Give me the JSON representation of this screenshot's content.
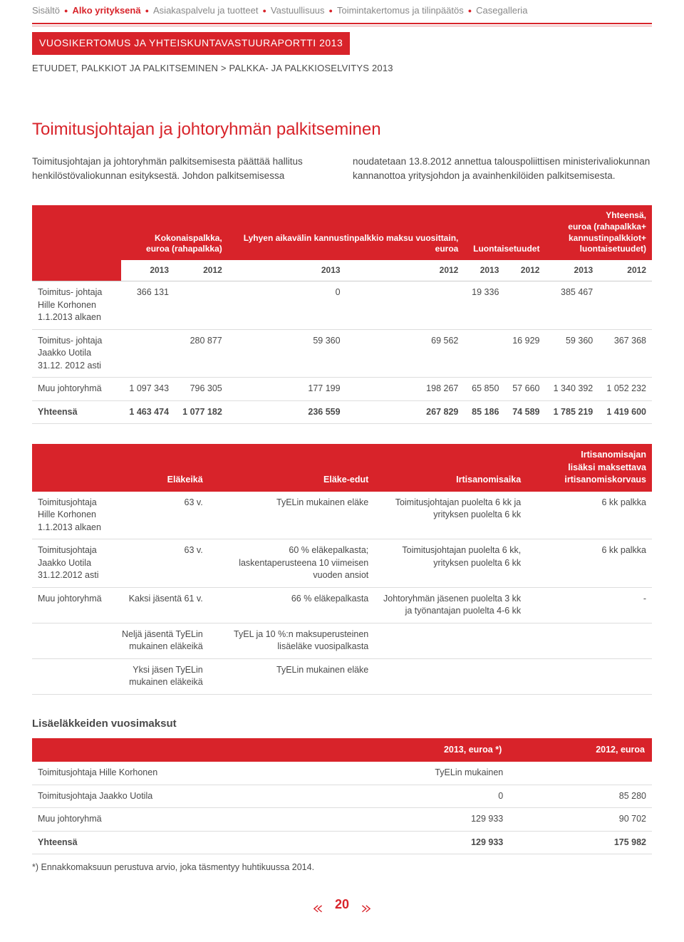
{
  "nav": {
    "items": [
      {
        "label": "Sisältö",
        "active": false
      },
      {
        "label": "Alko yrityksenä",
        "active": true
      },
      {
        "label": "Asiakaspalvelu ja tuotteet",
        "active": false
      },
      {
        "label": "Vastuullisuus",
        "active": false
      },
      {
        "label": "Toimintakertomus ja tilinpäätös",
        "active": false
      },
      {
        "label": "Casegalleria",
        "active": false
      }
    ]
  },
  "report_title": "VUOSIKERTOMUS JA YHTEISKUNTAVASTUURAPORTTI 2013",
  "breadcrumb": "ETUUDET, PALKKIOT JA PALKITSEMINEN > PALKKA- JA PALKKIOSELVITYS 2013",
  "heading": "Toimitusjohtajan ja johtoryhmän palkitseminen",
  "body_text": "Toimitusjohtajan ja johtoryhmän palkitsemisesta päättää hallitus henkilöstövaliokunnan esityksestä. Johdon palkitsemisessa noudatetaan 13.8.2012 annettua talouspoliittisen ministerivaliokunnan kannanottoa yritysjohdon ja avainhenkilöiden palkitsemisesta.",
  "t1": {
    "group_headers": [
      "",
      "Kokonaispalkka, euroa (rahapalkka)",
      "Lyhyen aikavälin kannustinpalkkio maksu vuosittain, euroa",
      "Luontaisetuudet",
      "Yhteensä, euroa (rahapalkka+ kannustinpalkkiot+ luontaisetuudet)"
    ],
    "years": [
      "2013",
      "2012",
      "2013",
      "2012",
      "2013",
      "2012",
      "2013",
      "2012"
    ],
    "rows": [
      {
        "label": "Toimitus- johtaja Hille Korhonen 1.1.2013 alkaen",
        "cells": [
          "366 131",
          "",
          "0",
          "",
          "19 336",
          "",
          "385 467",
          ""
        ]
      },
      {
        "label": "Toimitus- johtaja Jaakko Uotila 31.12. 2012 asti",
        "cells": [
          "",
          "280 877",
          "59 360",
          "69 562",
          "",
          "16 929",
          "59 360",
          "367 368"
        ]
      },
      {
        "label": "Muu johtoryhmä",
        "cells": [
          "1 097 343",
          "796 305",
          "177 199",
          "198 267",
          "65 850",
          "57 660",
          "1 340 392",
          "1 052 232"
        ]
      },
      {
        "label": "Yhteensä",
        "cells": [
          "1 463 474",
          "1 077 182",
          "236 559",
          "267 829",
          "85 186",
          "74 589",
          "1 785 219",
          "1 419 600"
        ],
        "total": true
      }
    ]
  },
  "t2": {
    "headers": [
      "",
      "Eläkeikä",
      "Eläke-edut",
      "Irtisanomisaika",
      "Irtisanomisajan lisäksi maksettava irtisanomiskorvaus"
    ],
    "rows": [
      {
        "cells": [
          "Toimitusjohtaja Hille Korhonen 1.1.2013 alkaen",
          "63 v.",
          "TyELin mukainen eläke",
          "Toimitusjohtajan puolelta 6 kk ja yrityksen puolelta 6 kk",
          "6 kk palkka"
        ]
      },
      {
        "cells": [
          "Toimitusjohtaja Jaakko Uotila 31.12.2012 asti",
          "63 v.",
          "60 % eläkepalkasta; laskentaperusteena 10 viimeisen vuoden ansiot",
          "Toimitusjohtajan puolelta 6 kk, yrityksen puolelta 6 kk",
          "6 kk palkka"
        ]
      },
      {
        "cells": [
          "Muu johtoryhmä",
          "Kaksi jäsentä 61 v.",
          "66 % eläkepalkasta",
          "Johtoryhmän jäsenen puolelta 3 kk ja työnantajan puolelta 4-6 kk",
          "-"
        ]
      },
      {
        "cells": [
          "",
          "Neljä jäsentä TyELin mukainen eläkeikä",
          "TyEL ja 10 %:n maksuperusteinen lisäeläke vuosipalkasta",
          "",
          ""
        ]
      },
      {
        "cells": [
          "",
          "Yksi jäsen TyELin mukainen eläkeikä",
          "TyELin mukainen eläke",
          "",
          ""
        ]
      }
    ]
  },
  "t3": {
    "title": "Lisäeläkkeiden vuosimaksut",
    "headers": [
      "",
      "2013, euroa *)",
      "2012, euroa"
    ],
    "rows": [
      {
        "cells": [
          "Toimitusjohtaja Hille Korhonen",
          "TyELin mukainen",
          ""
        ]
      },
      {
        "cells": [
          "Toimitusjohtaja Jaakko Uotila",
          "0",
          "85 280"
        ]
      },
      {
        "cells": [
          "Muu johtoryhmä",
          "129 933",
          "90 702"
        ]
      },
      {
        "cells": [
          "Yhteensä",
          "129 933",
          "175 982"
        ],
        "total": true
      }
    ],
    "footnote": "*) Ennakkomaksuun perustuva arvio, joka täsmentyy huhtikuussa 2014."
  },
  "page_number": "20",
  "colors": {
    "primary": "#d8232a",
    "text": "#4a4a4a",
    "muted": "#888888",
    "border": "#dddddd",
    "bg": "#ffffff"
  }
}
